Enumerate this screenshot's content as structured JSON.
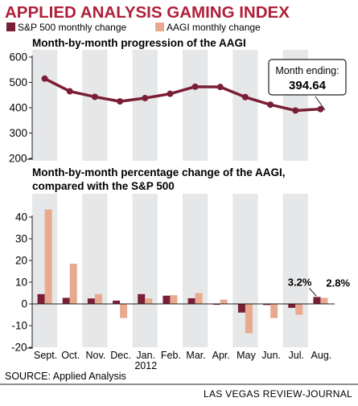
{
  "title": "APPLIED ANALYSIS GAMING INDEX",
  "legend": {
    "sp500_label": "S&P 500 monthly change",
    "aagi_label": "AAGI monthly change"
  },
  "colors": {
    "title": "#b0203a",
    "sp500": "#7a1e36",
    "aagi": "#e8a98f",
    "line": "#7a1e36",
    "band": "#e6e7e8",
    "axis": "#231f20"
  },
  "chart_data": [
    {
      "type": "line",
      "title": "Month-by-month progression of the AAGI",
      "categories": [
        "Sept.",
        "Oct.",
        "Nov.",
        "Dec.",
        "Jan.",
        "Feb.",
        "Mar.",
        "Apr.",
        "May",
        "Jun.",
        "Jul.",
        "Aug."
      ],
      "ylim": [
        200,
        600
      ],
      "yticks": [
        200,
        300,
        400,
        500,
        600
      ],
      "series": [
        {
          "values": [
            515,
            465,
            443,
            425,
            438,
            455,
            483,
            482,
            442,
            412,
            389,
            394.64
          ]
        }
      ],
      "annotation": {
        "label": "Month ending:",
        "value": "394.64"
      }
    },
    {
      "type": "bar",
      "title": "Month-by-month percentage change of the AAGI, compared with the S&P 500",
      "categories": [
        "Sept.",
        "Oct.",
        "Nov.",
        "Dec.",
        "Jan.",
        "Feb.",
        "Mar.",
        "Apr.",
        "May",
        "Jun.",
        "Jul.",
        "Aug."
      ],
      "ylim": [
        -20,
        50
      ],
      "yticks": [
        -20,
        -10,
        0,
        10,
        20,
        30,
        40
      ],
      "series": [
        {
          "name": "S&P 500 monthly change",
          "values": [
            4.5,
            2.8,
            2.5,
            1.5,
            4.5,
            3.8,
            2.6,
            -0.4,
            -4.0,
            -0.5,
            -1.8,
            3.2
          ]
        },
        {
          "name": "AAGI monthly change",
          "values": [
            43.5,
            18.5,
            4.5,
            -6.5,
            2.5,
            4.0,
            5.0,
            2.0,
            -13.5,
            -6.5,
            -5.0,
            2.8
          ]
        }
      ],
      "data_labels": {
        "sp500_last": "3.2%",
        "aagi_last": "2.8%"
      }
    }
  ],
  "x_year_label": "2012",
  "source": "SOURCE: Applied Analysis",
  "credit": "LAS VEGAS REVIEW-JOURNAL"
}
